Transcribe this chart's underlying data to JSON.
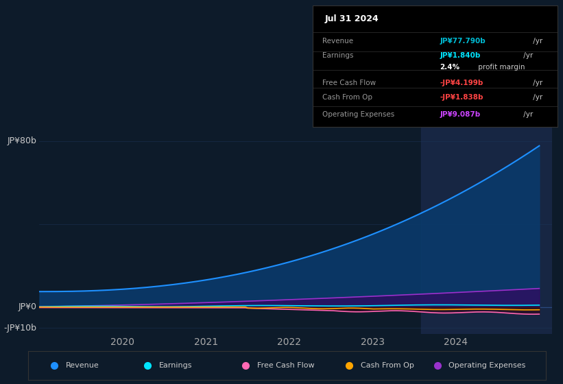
{
  "bg_color": "#0d1b2a",
  "info_box": {
    "title": "Jul 31 2024",
    "rows": [
      {
        "label": "Revenue",
        "value": "JP¥77.790b",
        "unit": " /yr",
        "value_color": "#00bcd4"
      },
      {
        "label": "Earnings",
        "value": "JP¥1.840b",
        "unit": " /yr",
        "value_color": "#00e5ff"
      },
      {
        "label": "",
        "value": "2.4%",
        "unit": " profit margin",
        "value_color": "#ffffff"
      },
      {
        "label": "Free Cash Flow",
        "value": "-JP¥4.199b",
        "unit": " /yr",
        "value_color": "#ff4444"
      },
      {
        "label": "Cash From Op",
        "value": "-JP¥1.838b",
        "unit": " /yr",
        "value_color": "#ff4444"
      },
      {
        "label": "Operating Expenses",
        "value": "JP¥9.087b",
        "unit": " /yr",
        "value_color": "#cc44ff"
      }
    ]
  },
  "revenue_color": "#1e90ff",
  "revenue_fill": "#0a3a6b",
  "earnings_color": "#00e5ff",
  "fcf_color": "#ff69b4",
  "cashfromop_color": "#ffa500",
  "opex_color": "#9932cc",
  "legend": [
    {
      "label": "Revenue",
      "color": "#1e90ff"
    },
    {
      "label": "Earnings",
      "color": "#00e5ff"
    },
    {
      "label": "Free Cash Flow",
      "color": "#ff69b4"
    },
    {
      "label": "Cash From Op",
      "color": "#ffa500"
    },
    {
      "label": "Operating Expenses",
      "color": "#9932cc"
    }
  ],
  "grid_color": "#1e3a5f",
  "zero_line_color": "#2a4a7f",
  "highlight_color": "#1a2a4a",
  "xtick_labels": [
    "2020",
    "2021",
    "2022",
    "2023",
    "2024"
  ],
  "xtick_positions": [
    2020,
    2021,
    2022,
    2023,
    2024
  ]
}
